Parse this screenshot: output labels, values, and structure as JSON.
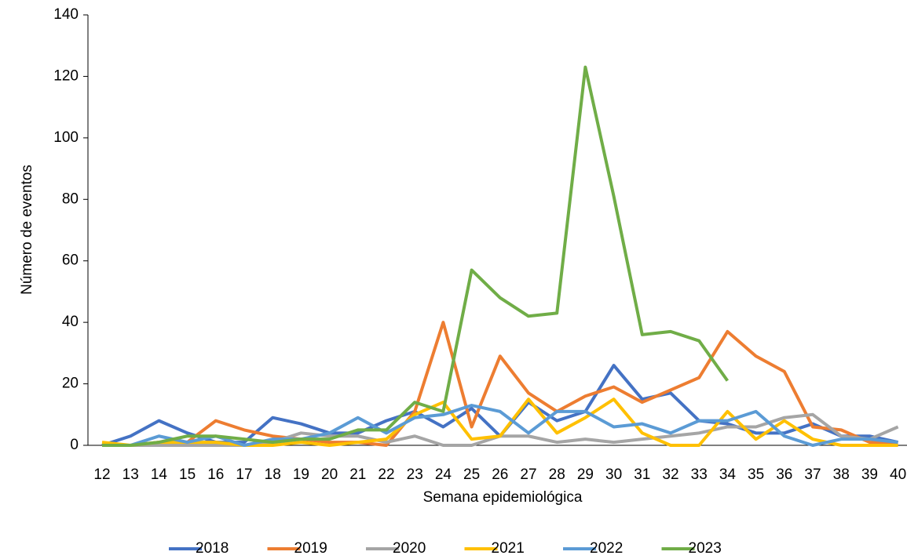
{
  "chart_data": {
    "type": "line",
    "x_label": "Semana epidemiológica",
    "y_label": "Número de eventos",
    "categories": [
      "12",
      "13",
      "14",
      "15",
      "16",
      "17",
      "18",
      "19",
      "20",
      "21",
      "22",
      "23",
      "24",
      "25",
      "26",
      "27",
      "28",
      "29",
      "30",
      "31",
      "32",
      "33",
      "34",
      "35",
      "36",
      "37",
      "38",
      "39",
      "40"
    ],
    "ylim": [
      0,
      140
    ],
    "yticks": [
      0,
      20,
      40,
      60,
      80,
      100,
      120,
      140
    ],
    "series": [
      {
        "name": "2018",
        "color": "#4472c4",
        "values": [
          0,
          3,
          8,
          4,
          1,
          1,
          9,
          7,
          4,
          4,
          8,
          11,
          6,
          12,
          3,
          14,
          8,
          11,
          26,
          15,
          17,
          8,
          7,
          4,
          4,
          7,
          3,
          3,
          1
        ]
      },
      {
        "name": "2019",
        "color": "#ed7d31",
        "values": [
          0,
          0,
          1,
          1,
          8,
          5,
          3,
          2,
          1,
          1,
          0,
          11,
          40,
          6,
          29,
          17,
          11,
          16,
          19,
          14,
          18,
          22,
          37,
          29,
          24,
          6,
          5,
          1,
          1
        ]
      },
      {
        "name": "2020",
        "color": "#a5a5a5",
        "values": [
          0,
          0,
          0,
          0,
          0,
          0,
          1,
          4,
          3,
          3,
          1,
          3,
          0,
          0,
          3,
          3,
          1,
          2,
          1,
          2,
          3,
          4,
          6,
          6,
          9,
          10,
          3,
          2,
          6
        ]
      },
      {
        "name": "2021",
        "color": "#ffc000",
        "values": [
          1,
          0,
          1,
          1,
          1,
          0,
          0,
          1,
          0,
          1,
          2,
          10,
          14,
          2,
          3,
          15,
          4,
          9,
          15,
          4,
          0,
          0,
          11,
          2,
          8,
          2,
          0,
          0,
          0
        ]
      },
      {
        "name": "2022",
        "color": "#5b9bd5",
        "values": [
          0,
          0,
          3,
          1,
          3,
          0,
          2,
          2,
          4,
          9,
          4,
          9,
          10,
          13,
          11,
          4,
          11,
          11,
          6,
          7,
          4,
          8,
          8,
          11,
          3,
          0,
          2,
          2,
          1
        ]
      },
      {
        "name": "2023",
        "color": "#70ad47",
        "values": [
          0,
          0,
          1,
          3,
          3,
          2,
          1,
          2,
          2,
          5,
          5,
          14,
          11,
          57,
          48,
          42,
          43,
          123,
          81,
          36,
          37,
          34,
          21,
          null,
          null,
          null,
          null,
          null,
          null
        ]
      }
    ]
  }
}
